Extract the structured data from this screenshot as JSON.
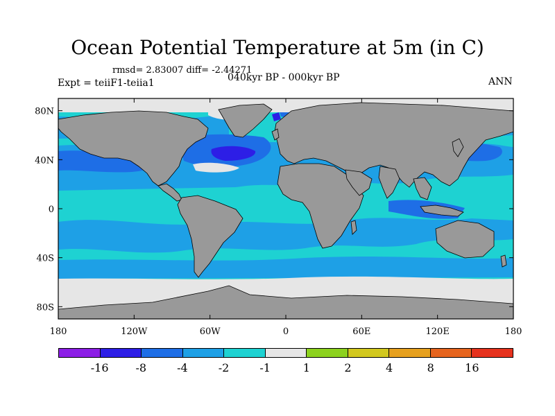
{
  "title": "Ocean Potential Temperature at 5m (in C)",
  "stats": "rmsd= 2.83007 diff= -2.44271",
  "expt": "Expt = teiiF1-teiia1",
  "period": "040kyr BP - 000kyr BP",
  "season": "ANN",
  "lat_ticks": [
    "80N",
    "40N",
    "0",
    "40S",
    "80S"
  ],
  "lon_ticks": [
    "180",
    "120W",
    "60W",
    "0",
    "60E",
    "120E",
    "180"
  ],
  "colorbar": {
    "colors": [
      "#8c1ee6",
      "#2d1ee6",
      "#1e6ee6",
      "#1ea0e6",
      "#1ed2d2",
      "#e6e6e6",
      "#8cd21e",
      "#d2c81e",
      "#e6a01e",
      "#e6641e",
      "#e6321e"
    ],
    "labels": [
      "-16",
      "-8",
      "-4",
      "-2",
      "-1",
      "1",
      "2",
      "4",
      "8",
      "16"
    ]
  },
  "colors": {
    "land": "#999999",
    "ocean_base": "#1ed2d2",
    "ocean_mid": "#1ea0e6",
    "ocean_deep": "#1e6ee6",
    "ocean_strong": "#2d1ee6",
    "ice": "#e6e6e6"
  },
  "chart_data": {
    "type": "heatmap",
    "title": "Ocean Potential Temperature at 5m (in C)",
    "subtitle": "040kyr BP - 000kyr BP",
    "xlabel": "",
    "ylabel": "",
    "xlim": [
      -180,
      180
    ],
    "ylim": [
      -90,
      90
    ],
    "levels": [
      -16,
      -8,
      -4,
      -2,
      -1,
      1,
      2,
      4,
      8,
      16
    ]
  }
}
